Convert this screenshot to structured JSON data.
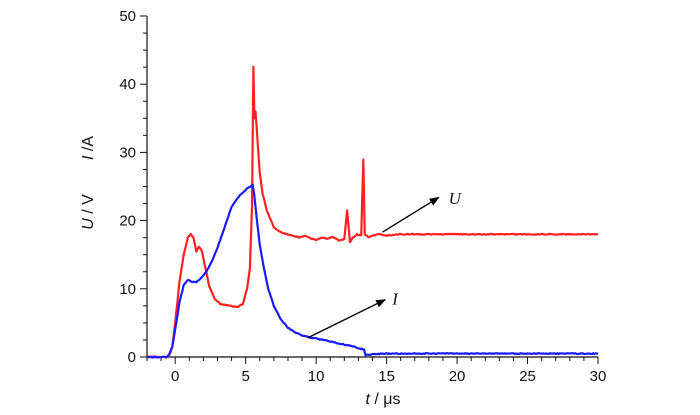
{
  "chart_data": {
    "type": "line",
    "title": "",
    "xlabel": {
      "var": "t",
      "unit": " / μs"
    },
    "ylabel": [
      {
        "var": "U",
        "unit": " / V"
      },
      {
        "var": "I",
        "unit": " /A"
      }
    ],
    "xlim": [
      -2,
      30
    ],
    "ylim": [
      0,
      50
    ],
    "x_ticks": [
      0,
      5,
      10,
      15,
      20,
      25,
      30
    ],
    "y_ticks": [
      0,
      10,
      20,
      30,
      40,
      50
    ],
    "grid": false,
    "legend": "none",
    "series": [
      {
        "name": "U",
        "color": "#ff2020",
        "x": [
          -2,
          -0.6,
          -0.4,
          -0.2,
          0,
          0.3,
          0.6,
          0.9,
          1.1,
          1.3,
          1.5,
          1.7,
          1.9,
          2.1,
          2.4,
          2.8,
          3.2,
          3.6,
          4.0,
          4.4,
          4.8,
          5.1,
          5.3,
          5.45,
          5.55,
          5.62,
          5.7,
          5.8,
          5.9,
          6.0,
          6.2,
          6.5,
          6.8,
          7.0,
          7.3,
          7.6,
          8.0,
          8.4,
          8.8,
          9.2,
          9.6,
          10.0,
          10.4,
          10.8,
          11.2,
          11.6,
          12.0,
          12.2,
          12.4,
          12.6,
          12.9,
          13.2,
          13.35,
          13.45,
          13.55,
          13.7,
          14.0,
          14.5,
          15,
          16,
          18,
          20,
          22,
          24,
          26,
          28,
          30
        ],
        "values": [
          0,
          0,
          0.3,
          1.5,
          5,
          11,
          15,
          17.5,
          18,
          17.5,
          15.5,
          16.2,
          15.5,
          13.5,
          10.5,
          8.5,
          7.8,
          7.6,
          7.5,
          7.3,
          7.8,
          10,
          13,
          22,
          42.5,
          35,
          36,
          33,
          30,
          27,
          24,
          21.5,
          20,
          19,
          18.5,
          18.2,
          18,
          17.8,
          17.5,
          17.8,
          17.4,
          17.2,
          17.5,
          17.3,
          17.6,
          17.1,
          17.3,
          21.5,
          16.8,
          17.5,
          18,
          17.8,
          29,
          18,
          17.8,
          17.6,
          17.8,
          18,
          17.8,
          18,
          18,
          18,
          18,
          18,
          18,
          18,
          18
        ]
      },
      {
        "name": "I",
        "color": "#1a1aff",
        "x": [
          -2,
          -0.6,
          -0.4,
          -0.2,
          0,
          0.3,
          0.6,
          0.9,
          1.2,
          1.5,
          1.8,
          2.2,
          2.6,
          3.0,
          3.5,
          4.0,
          4.5,
          5.0,
          5.3,
          5.5,
          5.6,
          5.8,
          6.0,
          6.3,
          6.6,
          7.0,
          7.5,
          8.0,
          8.5,
          9.0,
          9.5,
          10,
          10.5,
          11,
          11.5,
          12,
          12.5,
          13,
          13.4,
          13.5,
          14,
          15,
          17,
          20,
          25,
          30
        ],
        "values": [
          0,
          0,
          0.5,
          1.5,
          4,
          8,
          10.5,
          11.3,
          11,
          11,
          11.5,
          12.5,
          14,
          16,
          19,
          22,
          23.5,
          24.5,
          25,
          25.2,
          24,
          20,
          16.5,
          13,
          10,
          7.5,
          5.5,
          4.3,
          3.6,
          3.2,
          2.9,
          2.7,
          2.5,
          2.3,
          2.0,
          1.8,
          1.6,
          1.3,
          1.1,
          0.3,
          0.4,
          0.5,
          0.5,
          0.5,
          0.5,
          0.5
        ]
      }
    ],
    "annotations": [
      {
        "text": "U",
        "arrow_from": [
          14.7,
          18.3
        ],
        "arrow_to": [
          18.7,
          23.4
        ],
        "label_at": [
          19.4,
          23.3
        ]
      },
      {
        "text": "I",
        "arrow_from": [
          9.4,
          2.8
        ],
        "arrow_to": [
          14.9,
          8.4
        ],
        "label_at": [
          15.4,
          8.6
        ]
      }
    ]
  }
}
